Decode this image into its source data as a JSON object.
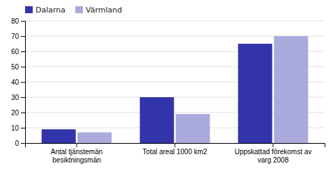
{
  "chart_data": {
    "type": "bar",
    "categories": [
      "Antal tjänstemän\nbesiktningsmän",
      "Total areal 1000 km2",
      "Uppskattad förekomst av\nvarg 2008"
    ],
    "series": [
      {
        "name": "Dalarna",
        "color": "#3333AA",
        "values": [
          9,
          30,
          65
        ]
      },
      {
        "name": "Värmland",
        "color": "#AAAADD",
        "values": [
          7,
          19,
          70
        ]
      }
    ],
    "ylim": [
      0,
      80
    ],
    "yticks": [
      0,
      10,
      20,
      30,
      40,
      50,
      60,
      70,
      80
    ],
    "grid": true,
    "legend": "upper left"
  }
}
